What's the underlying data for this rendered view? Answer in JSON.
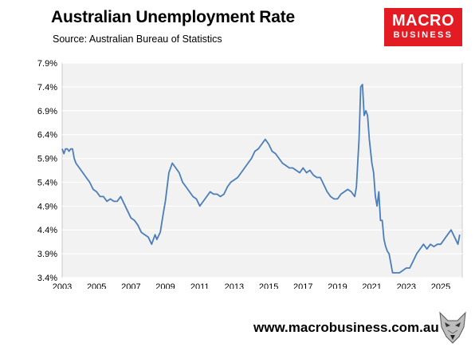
{
  "header": {
    "title": "Australian Unemployment Rate",
    "subtitle": "Source: Australian Bureau of Statistics"
  },
  "logo": {
    "line1": "MACRO",
    "line2": "BUSINESS"
  },
  "footer": {
    "website": "www.macrobusiness.com.au"
  },
  "colors": {
    "line": "#4a7ebb",
    "plot_bg": "#f2f2f2",
    "grid": "#ffffff",
    "logo_bg": "#e31b23"
  },
  "chart_data": {
    "type": "line",
    "title": "Australian Unemployment Rate",
    "xlabel": "",
    "ylabel": "",
    "ylim": [
      3.4,
      7.9
    ],
    "xlim": [
      2003.0,
      2026.25
    ],
    "yticks": [
      7.9,
      7.4,
      6.9,
      6.4,
      5.9,
      5.4,
      4.9,
      4.4,
      3.9,
      3.4
    ],
    "ytick_labels": [
      "7.9%",
      "7.4%",
      "6.9%",
      "6.4%",
      "5.9%",
      "5.4%",
      "4.9%",
      "4.4%",
      "3.9%",
      "3.4%"
    ],
    "xticks": [
      2003,
      2005,
      2007,
      2009,
      2011,
      2013,
      2015,
      2017,
      2019,
      2021,
      2023,
      2025
    ],
    "xtick_labels": [
      "2003",
      "2005",
      "2007",
      "2009",
      "2011",
      "2013",
      "2015",
      "2017",
      "2019",
      "2021",
      "2023",
      "2025"
    ],
    "grid": "horizontal",
    "legend": "none",
    "series": [
      {
        "name": "",
        "x": [
          2003.0,
          2003.1,
          2003.2,
          2003.3,
          2003.4,
          2003.5,
          2003.6,
          2003.7,
          2003.8,
          2003.9,
          2004.0,
          2004.2,
          2004.4,
          2004.6,
          2004.8,
          2005.0,
          2005.2,
          2005.4,
          2005.6,
          2005.8,
          2006.0,
          2006.2,
          2006.4,
          2006.6,
          2006.8,
          2007.0,
          2007.2,
          2007.4,
          2007.6,
          2007.8,
          2008.0,
          2008.2,
          2008.4,
          2008.5,
          2008.7,
          2008.9,
          2009.0,
          2009.2,
          2009.4,
          2009.6,
          2009.8,
          2010.0,
          2010.2,
          2010.4,
          2010.6,
          2010.8,
          2011.0,
          2011.2,
          2011.4,
          2011.6,
          2011.8,
          2012.0,
          2012.2,
          2012.4,
          2012.6,
          2012.8,
          2013.0,
          2013.2,
          2013.4,
          2013.6,
          2013.8,
          2014.0,
          2014.2,
          2014.4,
          2014.6,
          2014.8,
          2015.0,
          2015.2,
          2015.4,
          2015.6,
          2015.8,
          2016.0,
          2016.2,
          2016.4,
          2016.6,
          2016.8,
          2017.0,
          2017.2,
          2017.4,
          2017.6,
          2017.8,
          2018.0,
          2018.2,
          2018.4,
          2018.6,
          2018.8,
          2019.0,
          2019.2,
          2019.4,
          2019.6,
          2019.8,
          2020.0,
          2020.1,
          2020.25,
          2020.35,
          2020.45,
          2020.55,
          2020.65,
          2020.75,
          2020.85,
          2021.0,
          2021.1,
          2021.2,
          2021.3,
          2021.4,
          2021.5,
          2021.6,
          2021.7,
          2021.8,
          2021.9,
          2022.0,
          2022.2,
          2022.4,
          2022.6,
          2022.8,
          2023.0,
          2023.2,
          2023.4,
          2023.6,
          2023.8,
          2024.0,
          2024.2,
          2024.4,
          2024.6,
          2024.8,
          2025.0,
          2025.2,
          2025.4,
          2025.6,
          2025.8,
          2026.0,
          2026.1
        ],
        "values": [
          6.1,
          6.0,
          6.1,
          6.1,
          6.05,
          6.1,
          6.1,
          5.9,
          5.8,
          5.75,
          5.7,
          5.6,
          5.5,
          5.4,
          5.25,
          5.2,
          5.1,
          5.1,
          5.0,
          5.05,
          5.0,
          5.0,
          5.1,
          4.95,
          4.8,
          4.65,
          4.6,
          4.5,
          4.35,
          4.3,
          4.25,
          4.1,
          4.3,
          4.2,
          4.35,
          4.8,
          5.0,
          5.6,
          5.8,
          5.7,
          5.6,
          5.4,
          5.3,
          5.2,
          5.1,
          5.05,
          4.9,
          5.0,
          5.1,
          5.2,
          5.15,
          5.15,
          5.1,
          5.15,
          5.3,
          5.4,
          5.45,
          5.5,
          5.6,
          5.7,
          5.8,
          5.9,
          6.05,
          6.1,
          6.2,
          6.3,
          6.2,
          6.05,
          6.0,
          5.9,
          5.8,
          5.75,
          5.7,
          5.7,
          5.65,
          5.6,
          5.7,
          5.6,
          5.65,
          5.55,
          5.5,
          5.5,
          5.35,
          5.2,
          5.1,
          5.05,
          5.05,
          5.15,
          5.2,
          5.25,
          5.2,
          5.1,
          5.3,
          6.3,
          7.4,
          7.45,
          6.8,
          6.9,
          6.8,
          6.3,
          5.8,
          5.6,
          5.1,
          4.9,
          5.2,
          4.6,
          4.6,
          4.2,
          4.05,
          3.95,
          3.9,
          3.5,
          3.5,
          3.5,
          3.55,
          3.6,
          3.6,
          3.75,
          3.9,
          4.0,
          4.1,
          4.0,
          4.1,
          4.05,
          4.1,
          4.1,
          4.2,
          4.3,
          4.4,
          4.25,
          4.1,
          4.3
        ]
      }
    ]
  }
}
